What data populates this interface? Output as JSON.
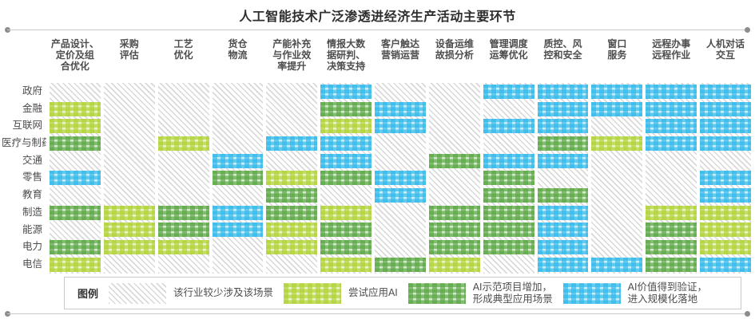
{
  "title": "人工智能技术广泛渗透进经济生产活动主要环节",
  "legend": {
    "label": "图例",
    "items": [
      {
        "level": 0,
        "text": "该行业较少涉及该场景"
      },
      {
        "level": 1,
        "text": "尝试应用AI"
      },
      {
        "level": 2,
        "text": "AI示范项目增加，\n形成典型应用场景"
      },
      {
        "level": 3,
        "text": "AI价值得到验证，\n进入规模化落地"
      }
    ]
  },
  "colors": {
    "none_gray": "#d2d2d2",
    "try_lime": "#b0d235",
    "demo_green": "#5aa743",
    "scale_blue": "#31b9e9",
    "rule_line": "#c8c8c8",
    "rule_dot": "#8c8c8c",
    "title_text": "#2e2e2e",
    "label_text": "#4d4d4d"
  },
  "chart_data": {
    "type": "heatmap",
    "title": "人工智能技术广泛渗透进经济生产活动主要环节",
    "x_categories": [
      "产品设计、定价及组合优化",
      "采购评估",
      "工艺优化",
      "货仓物流",
      "产能补充与作业效率提升",
      "情报大数据研判、决策支持",
      "客户触达营销运营",
      "设备运维故损分析",
      "管理调度运筹优化",
      "质控、风控和安全",
      "窗口服务",
      "远程办事远程作业",
      "人机对话交互"
    ],
    "x_labels_wrapped": [
      "产品设计、\n定价及组\n合优化",
      "采购\n评估",
      "工艺\n优化",
      "货仓\n物流",
      "产能补充\n与作业效\n率提升",
      "情报大数\n据研判、\n决策支持",
      "客户触达\n营销运营",
      "设备运维\n故损分析",
      "管理调度\n运筹优化",
      "质控、风\n控和安全",
      "窗口\n服务",
      "远程办事\n远程作业",
      "人机对话\n交互"
    ],
    "y_categories": [
      "政府",
      "金融",
      "互联网",
      "医疗与制药",
      "交通",
      "零售",
      "教育",
      "制造",
      "能源",
      "电力",
      "电信"
    ],
    "levels": [
      {
        "code": 0,
        "label": "该行业较少涉及该场景",
        "color": "#d2d2d2"
      },
      {
        "code": 1,
        "label": "尝试应用AI",
        "color": "#b0d235"
      },
      {
        "code": 2,
        "label": "AI示范项目增加，形成典型应用场景",
        "color": "#5aa743"
      },
      {
        "code": 3,
        "label": "AI价值得到验证，进入规模化落地",
        "color": "#31b9e9"
      }
    ],
    "matrix": [
      [
        0,
        0,
        0,
        0,
        0,
        3,
        0,
        0,
        3,
        3,
        3,
        3,
        3
      ],
      [
        1,
        0,
        0,
        0,
        0,
        2,
        3,
        0,
        0,
        3,
        3,
        3,
        3
      ],
      [
        1,
        0,
        0,
        0,
        0,
        1,
        3,
        0,
        3,
        3,
        0,
        3,
        3
      ],
      [
        2,
        0,
        1,
        0,
        3,
        3,
        0,
        0,
        0,
        2,
        1,
        3,
        3
      ],
      [
        0,
        0,
        0,
        3,
        0,
        3,
        0,
        2,
        3,
        3,
        0,
        0,
        0
      ],
      [
        3,
        0,
        0,
        2,
        1,
        2,
        3,
        0,
        2,
        0,
        0,
        0,
        3
      ],
      [
        0,
        0,
        0,
        0,
        2,
        0,
        3,
        0,
        2,
        2,
        0,
        0,
        3
      ],
      [
        2,
        1,
        2,
        3,
        2,
        1,
        0,
        2,
        2,
        3,
        0,
        1,
        1
      ],
      [
        0,
        1,
        2,
        3,
        1,
        2,
        0,
        2,
        2,
        3,
        0,
        2,
        1
      ],
      [
        2,
        1,
        1,
        0,
        1,
        2,
        0,
        2,
        2,
        3,
        0,
        2,
        1
      ],
      [
        1,
        0,
        0,
        0,
        0,
        1,
        2,
        1,
        0,
        3,
        3,
        2,
        3
      ]
    ],
    "legend_position": "bottom",
    "grid": false
  }
}
